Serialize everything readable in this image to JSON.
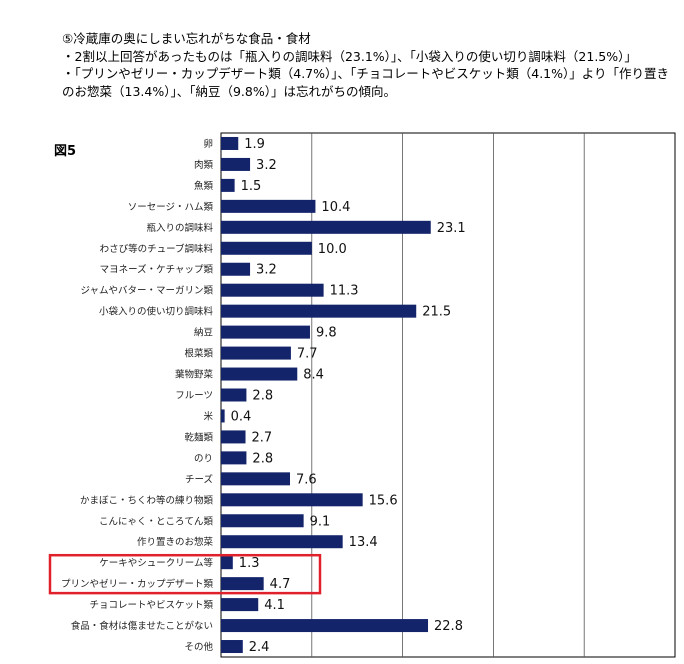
{
  "intro": {
    "line1": "⑤冷蔵庫の奥にしまい忘れがちな食品・食材",
    "line2": "・2割以上回答があったものは「瓶入りの調味料（23.1%）」、「小袋入りの使い切り調味料（21.5%）」",
    "line3": "・「プリンやゼリー・カップデザート類（4.7%）」、「チョコレートやビスケット類（4.1%）」より「作り置きのお惣菜（13.4%）」、「納豆（9.8%）」は忘れがちの傾向。"
  },
  "figure_label": "図5",
  "highlight_color": "#e0202a",
  "bar_color": "#14246b",
  "chart_data": {
    "type": "bar",
    "orientation": "horizontal",
    "title": "",
    "xlabel": "",
    "ylabel": "",
    "xlim": [
      0,
      50
    ],
    "grid": true,
    "categories": [
      "卵",
      "肉類",
      "魚類",
      "ソーセージ・ハム類",
      "瓶入りの調味料",
      "わさび等のチューブ調味料",
      "マヨネーズ・ケチャップ類",
      "ジャムやバター・マーガリン類",
      "小袋入りの使い切り調味料",
      "納豆",
      "根菜類",
      "葉物野菜",
      "フルーツ",
      "米",
      "乾麺類",
      "のり",
      "チーズ",
      "かまぼこ・ちくわ等の練り物類",
      "こんにゃく・ところてん類",
      "作り置きのお惣菜",
      "ケーキやシュークリーム等",
      "プリンやゼリー・カップデザート類",
      "チョコレートやビスケット類",
      "食品・食材は傷ませたことがない",
      "その他"
    ],
    "values": [
      1.9,
      3.2,
      1.5,
      10.4,
      23.1,
      10.0,
      3.2,
      11.3,
      21.5,
      9.8,
      7.7,
      8.4,
      2.8,
      0.4,
      2.7,
      2.8,
      7.6,
      15.6,
      9.1,
      13.4,
      1.3,
      4.7,
      4.1,
      22.8,
      2.4
    ],
    "value_labels": [
      "1.9",
      "3.2",
      "1.5",
      "10.4",
      "23.1",
      "10.0",
      "3.2",
      "11.3",
      "21.5",
      "9.8",
      "7.7",
      "8.4",
      "2.8",
      "0.4",
      "2.7",
      "2.8",
      "7.6",
      "15.6",
      "9.1",
      "13.4",
      "1.3",
      "4.7",
      "4.1",
      "22.8",
      "2.4"
    ],
    "highlighted_categories": [
      "ケーキやシュークリーム等",
      "プリンやゼリー・カップデザート類"
    ]
  }
}
